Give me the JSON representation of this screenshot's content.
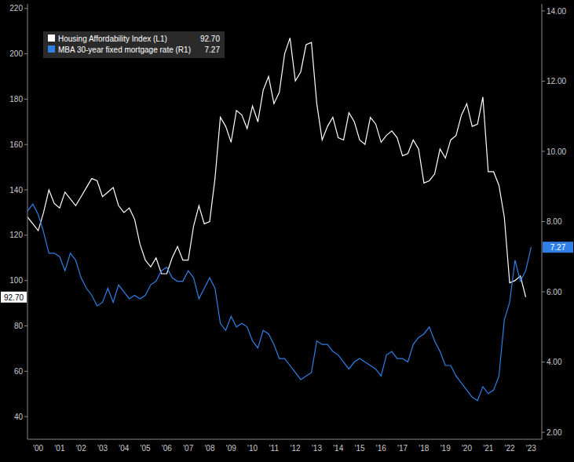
{
  "chart_data": {
    "type": "line",
    "legend": "upper left",
    "grid": false,
    "x": [
      2000,
      2000.25,
      2000.5,
      2000.75,
      2001,
      2001.25,
      2001.5,
      2001.75,
      2002,
      2002.25,
      2002.5,
      2002.75,
      2003,
      2003.25,
      2003.5,
      2003.75,
      2004,
      2004.25,
      2004.5,
      2004.75,
      2005,
      2005.25,
      2005.5,
      2005.75,
      2006,
      2006.25,
      2006.5,
      2006.75,
      2007,
      2007.25,
      2007.5,
      2007.75,
      2008,
      2008.25,
      2008.5,
      2008.75,
      2009,
      2009.25,
      2009.5,
      2009.75,
      2010,
      2010.25,
      2010.5,
      2010.75,
      2011,
      2011.25,
      2011.5,
      2011.75,
      2012,
      2012.25,
      2012.5,
      2012.75,
      2013,
      2013.25,
      2013.5,
      2013.75,
      2014,
      2014.25,
      2014.5,
      2014.75,
      2015,
      2015.25,
      2015.5,
      2015.75,
      2016,
      2016.25,
      2016.5,
      2016.75,
      2017,
      2017.25,
      2017.5,
      2017.75,
      2018,
      2018.25,
      2018.5,
      2018.75,
      2019,
      2019.25,
      2019.5,
      2019.75,
      2020,
      2020.25,
      2020.5,
      2020.75,
      2021,
      2021.25,
      2021.5,
      2021.75,
      2022,
      2022.25,
      2022.5,
      2022.75,
      2023,
      2023.25,
      2023.5
    ],
    "xlim": [
      2000,
      2024
    ],
    "xticks": [
      {
        "value": 2000.5,
        "label": "'00"
      },
      {
        "value": 2001.5,
        "label": "'01"
      },
      {
        "value": 2002.5,
        "label": "'02"
      },
      {
        "value": 2003.5,
        "label": "'03"
      },
      {
        "value": 2004.5,
        "label": "'04"
      },
      {
        "value": 2005.5,
        "label": "'05"
      },
      {
        "value": 2006.5,
        "label": "'06"
      },
      {
        "value": 2007.5,
        "label": "'07"
      },
      {
        "value": 2008.5,
        "label": "'08"
      },
      {
        "value": 2009.5,
        "label": "'09"
      },
      {
        "value": 2010.5,
        "label": "'10"
      },
      {
        "value": 2011.5,
        "label": "'11"
      },
      {
        "value": 2012.5,
        "label": "'12"
      },
      {
        "value": 2013.5,
        "label": "'13"
      },
      {
        "value": 2014.5,
        "label": "'14"
      },
      {
        "value": 2015.5,
        "label": "'15"
      },
      {
        "value": 2016.5,
        "label": "'16"
      },
      {
        "value": 2017.5,
        "label": "'17"
      },
      {
        "value": 2018.5,
        "label": "'18"
      },
      {
        "value": 2019.5,
        "label": "'19"
      },
      {
        "value": 2020.5,
        "label": "'20"
      },
      {
        "value": 2021.5,
        "label": "'21"
      },
      {
        "value": 2022.5,
        "label": "'22"
      },
      {
        "value": 2023.5,
        "label": "'23"
      }
    ],
    "ylim": [
      30,
      222
    ],
    "yticks": [
      40,
      60,
      80,
      100,
      120,
      140,
      160,
      180,
      200,
      220
    ],
    "y2lim": [
      1.8,
      14.2
    ],
    "y2ticks": [
      {
        "value": 2,
        "label": "2.00"
      },
      {
        "value": 4,
        "label": "4.00"
      },
      {
        "value": 6,
        "label": "6.00"
      },
      {
        "value": 8,
        "label": "8.00"
      },
      {
        "value": 10,
        "label": "10.00"
      },
      {
        "value": 12,
        "label": "12.00"
      },
      {
        "value": 14,
        "label": "14.00"
      }
    ],
    "series": [
      {
        "name": "Housing Affordability Index (L1)",
        "color": "#ffffff",
        "last_label": "92.70",
        "values": [
          128,
          125,
          122,
          130,
          140,
          134,
          132,
          139,
          136,
          133,
          137,
          141,
          145,
          144,
          137,
          139,
          141,
          133,
          130,
          132,
          127,
          116,
          109,
          106,
          110,
          103,
          103,
          110,
          115,
          109,
          109,
          124,
          133,
          125,
          126,
          145,
          172,
          168,
          161,
          175,
          173,
          167,
          177,
          170,
          184,
          190,
          178,
          183,
          200,
          207,
          188,
          192,
          204,
          205,
          178,
          162,
          168,
          172,
          163,
          162,
          174,
          170,
          162,
          160,
          172,
          169,
          161,
          164,
          166,
          163,
          155,
          156,
          162,
          158,
          143,
          144,
          147,
          158,
          154,
          162,
          164,
          173,
          178,
          168,
          169,
          181,
          148,
          148,
          142,
          128,
          99,
          100,
          102,
          92.7,
          null
        ]
      },
      {
        "name": "MBA 30-year fixed mortgage rate (R1)",
        "color": "#2f7fe6",
        "axis": "y2",
        "last_label": "7.27",
        "values": [
          8.3,
          8.5,
          8.2,
          7.7,
          7.1,
          7.1,
          7.0,
          6.6,
          7.1,
          6.9,
          6.4,
          6.1,
          5.9,
          5.6,
          5.7,
          6.1,
          5.7,
          6.2,
          6.0,
          5.8,
          5.9,
          5.8,
          5.9,
          6.2,
          6.3,
          6.6,
          6.7,
          6.4,
          6.3,
          6.3,
          6.6,
          6.4,
          5.8,
          6.1,
          6.4,
          6.1,
          5.1,
          4.9,
          5.3,
          5.0,
          5.1,
          5.0,
          4.6,
          4.4,
          4.9,
          4.8,
          4.5,
          4.1,
          4.1,
          3.9,
          3.7,
          3.5,
          3.6,
          3.7,
          4.6,
          4.5,
          4.5,
          4.3,
          4.2,
          4.0,
          3.8,
          4.0,
          4.1,
          4.0,
          3.9,
          3.8,
          3.6,
          4.2,
          4.3,
          4.1,
          4.1,
          4.0,
          4.5,
          4.7,
          4.8,
          5.0,
          4.6,
          4.3,
          3.9,
          3.9,
          3.6,
          3.4,
          3.2,
          3.0,
          2.9,
          3.3,
          3.1,
          3.2,
          3.6,
          5.2,
          5.7,
          6.9,
          6.3,
          6.6,
          7.27
        ]
      }
    ]
  }
}
